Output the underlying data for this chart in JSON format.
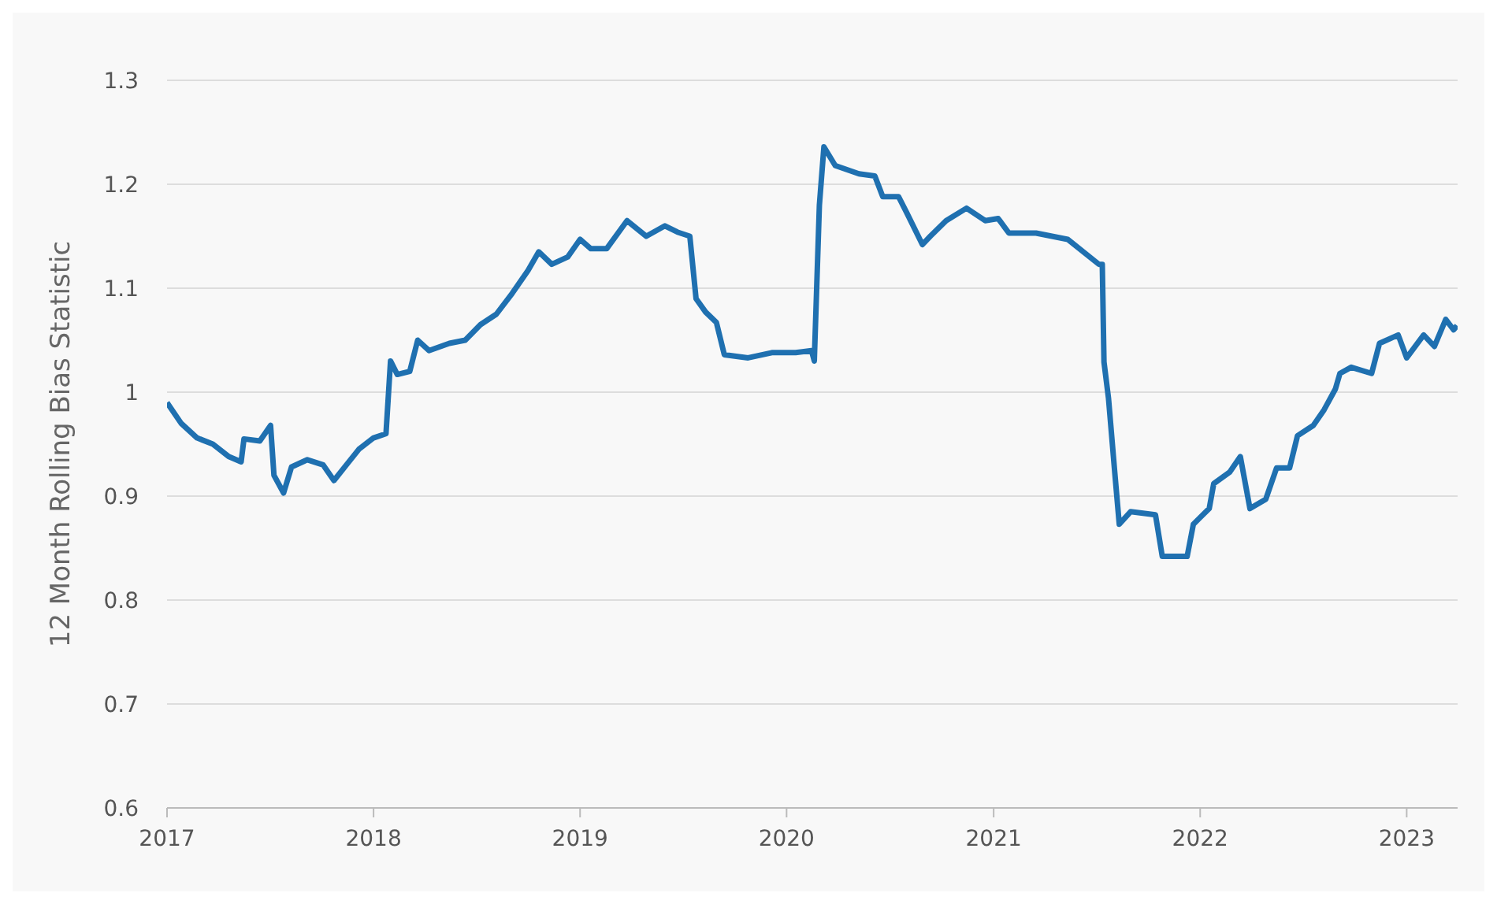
{
  "chart_data": {
    "type": "line",
    "ylabel": "12 Month Rolling Bias Statistic",
    "xlim": [
      "2017",
      "2023-04"
    ],
    "xticks": [
      "2017",
      "2018",
      "2019",
      "2020",
      "2021",
      "2022",
      "2023"
    ],
    "ylim": [
      0.6,
      1.3
    ],
    "yticks": [
      0.6,
      0.7,
      0.8,
      0.9,
      1,
      1.1,
      1.2,
      1.3
    ],
    "grid": "y",
    "legend": false,
    "marker": "none",
    "line_style": "solid",
    "x": [
      "2017-01-01",
      "2017-01-26",
      "2017-02-23",
      "2017-03-23",
      "2017-04-20",
      "2017-05-12",
      "2017-05-17",
      "2017-06-14",
      "2017-07-03",
      "2017-07-09",
      "2017-07-26",
      "2017-08-09",
      "2017-09-06",
      "2017-10-04",
      "2017-10-23",
      "2017-11-14",
      "2017-12-06",
      "2018-01-01",
      "2018-01-23",
      "2018-01-31",
      "2018-02-12",
      "2018-03-06",
      "2018-03-20",
      "2018-04-09",
      "2018-05-15",
      "2018-06-12",
      "2018-07-09",
      "2018-08-06",
      "2018-09-03",
      "2018-10-01",
      "2018-10-20",
      "2018-11-12",
      "2018-12-10",
      "2019-01-01",
      "2019-01-20",
      "2019-02-17",
      "2019-03-25",
      "2019-04-28",
      "2019-05-31",
      "2019-06-22",
      "2019-07-14",
      "2019-07-25",
      "2019-08-11",
      "2019-08-30",
      "2019-09-13",
      "2019-10-25",
      "2019-12-06",
      "2020-01-17",
      "2020-02-14",
      "2020-02-19",
      "2020-02-28",
      "2020-03-07",
      "2020-03-27",
      "2020-05-08",
      "2020-06-05",
      "2020-06-19",
      "2020-07-17",
      "2020-07-31",
      "2020-08-28",
      "2020-09-11",
      "2020-10-09",
      "2020-11-14",
      "2020-12-17",
      "2021-01-09",
      "2021-01-28",
      "2021-03-17",
      "2021-05-12",
      "2021-07-06",
      "2021-07-12",
      "2021-07-15",
      "2021-07-23",
      "2021-08-03",
      "2021-08-11",
      "2021-08-31",
      "2021-10-14",
      "2021-10-26",
      "2021-12-09",
      "2021-12-20",
      "2022-01-17",
      "2022-01-25",
      "2022-02-22",
      "2022-03-13",
      "2022-03-30",
      "2022-04-27",
      "2022-05-16",
      "2022-06-08",
      "2022-06-22",
      "2022-07-20",
      "2022-08-08",
      "2022-08-28",
      "2022-09-05",
      "2022-09-25",
      "2022-10-31",
      "2022-11-14",
      "2022-12-17",
      "2023-01-01",
      "2023-01-31",
      "2023-02-19",
      "2023-03-11",
      "2023-03-25",
      "2023-03-31"
    ],
    "series": [
      {
        "color": "#1f70b0",
        "values": [
          0.99,
          0.97,
          0.956,
          0.95,
          0.938,
          0.933,
          0.955,
          0.953,
          0.968,
          0.92,
          0.903,
          0.928,
          0.935,
          0.93,
          0.915,
          0.93,
          0.945,
          0.956,
          0.96,
          1.03,
          1.017,
          1.02,
          1.05,
          1.04,
          1.047,
          1.05,
          1.065,
          1.075,
          1.095,
          1.117,
          1.135,
          1.123,
          1.13,
          1.147,
          1.138,
          1.138,
          1.165,
          1.15,
          1.16,
          1.154,
          1.15,
          1.09,
          1.077,
          1.067,
          1.036,
          1.033,
          1.038,
          1.038,
          1.04,
          1.03,
          1.18,
          1.236,
          1.218,
          1.21,
          1.208,
          1.188,
          1.188,
          1.173,
          1.142,
          1.15,
          1.165,
          1.177,
          1.165,
          1.167,
          1.153,
          1.153,
          1.147,
          1.123,
          1.123,
          1.029,
          0.994,
          0.923,
          0.873,
          0.885,
          0.882,
          0.842,
          0.842,
          0.873,
          0.888,
          0.912,
          0.923,
          0.938,
          0.888,
          0.897,
          0.927,
          0.927,
          0.958,
          0.968,
          0.983,
          1.003,
          1.018,
          1.024,
          1.018,
          1.047,
          1.055,
          1.033,
          1.055,
          1.044,
          1.07,
          1.06,
          1.064
        ]
      }
    ]
  }
}
